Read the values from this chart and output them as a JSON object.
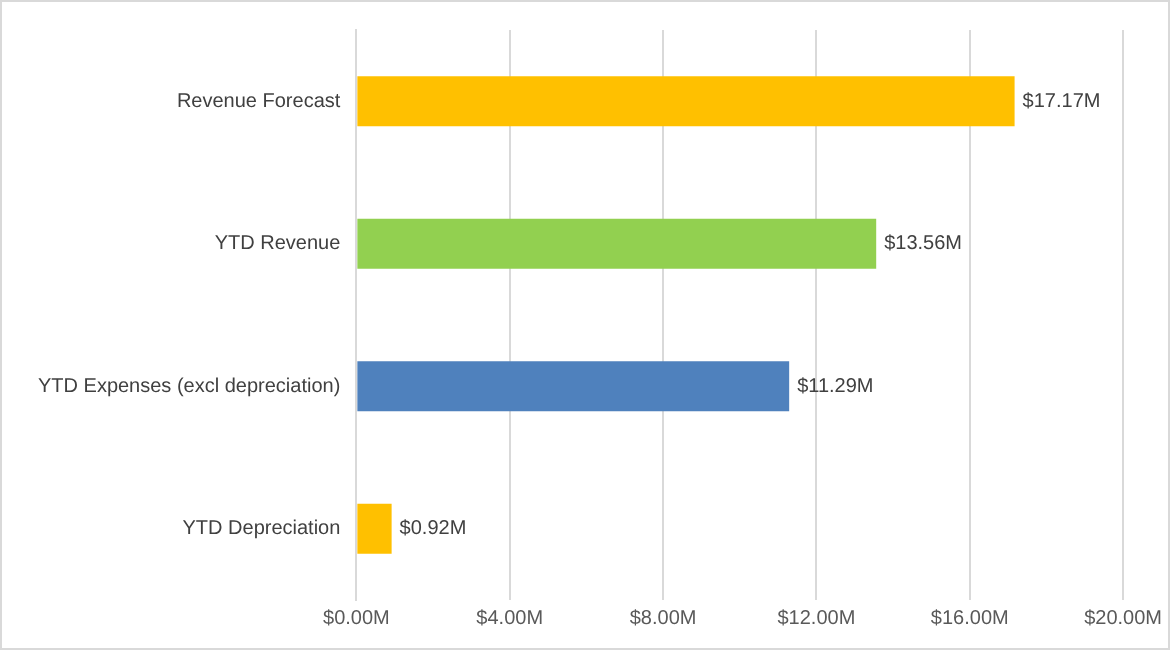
{
  "chart_data": {
    "type": "bar",
    "orientation": "horizontal",
    "categories": [
      "Revenue Forecast",
      "YTD Revenue",
      "YTD Expenses (excl depreciation)",
      "YTD Depreciation"
    ],
    "values": [
      17.17,
      13.56,
      11.29,
      0.92
    ],
    "colors": [
      "#ffc000",
      "#92d050",
      "#4f81bd",
      "#ffc000"
    ],
    "value_labels": [
      "$17.17M",
      "$13.56M",
      "$11.29M",
      "$0.92M"
    ],
    "xlim": [
      0,
      20
    ],
    "xticks": [
      {
        "value": 0,
        "label": "$0.00M"
      },
      {
        "value": 4,
        "label": "$4.00M"
      },
      {
        "value": 8,
        "label": "$8.00M"
      },
      {
        "value": 12,
        "label": "$12.00M"
      },
      {
        "value": 16,
        "label": "$16.00M"
      },
      {
        "value": 20,
        "label": "$20.00M"
      }
    ],
    "grid": "x",
    "legend": false
  }
}
